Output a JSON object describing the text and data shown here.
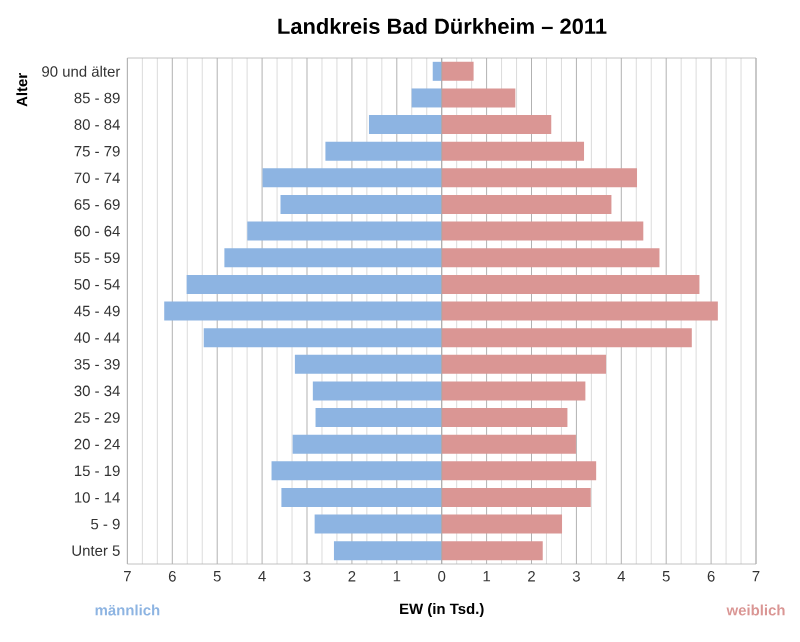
{
  "chart_data": {
    "type": "bar",
    "orientation": "horizontal",
    "title": "Landkreis Bad Dürkheim – 2011",
    "xlabel": "EW (in Tsd.)",
    "ylabel": "Alter",
    "categories": [
      "90 und älter",
      "85 - 89",
      "80 - 84",
      "75 - 79",
      "70 - 74",
      "65 - 69",
      "60 - 64",
      "55 - 59",
      "50 - 54",
      "45 - 49",
      "40 - 44",
      "35 - 39",
      "30 - 34",
      "25 - 29",
      "20 - 24",
      "15 - 19",
      "10 - 14",
      "5 - 9",
      "Unter 5"
    ],
    "series": [
      {
        "name": "männlich",
        "color": "#8db4e2",
        "values": [
          -0.2,
          -0.67,
          -1.62,
          -2.59,
          -3.99,
          -3.59,
          -4.33,
          -4.84,
          -5.68,
          -6.18,
          -5.3,
          -3.27,
          -2.87,
          -2.81,
          -3.32,
          -3.79,
          -3.57,
          -2.83,
          -2.4
        ]
      },
      {
        "name": "weiblich",
        "color": "#da9694",
        "values": [
          0.71,
          1.64,
          2.44,
          3.17,
          4.35,
          3.78,
          4.49,
          4.85,
          5.74,
          6.15,
          5.57,
          3.66,
          3.2,
          2.8,
          2.99,
          3.44,
          3.32,
          2.68,
          2.25
        ]
      }
    ],
    "xlim": [
      -7,
      7
    ],
    "xticks": [
      {
        "value": -7,
        "label": "7"
      },
      {
        "value": -6,
        "label": "6"
      },
      {
        "value": -5,
        "label": "5"
      },
      {
        "value": -4,
        "label": "4"
      },
      {
        "value": -3,
        "label": "3"
      },
      {
        "value": -2,
        "label": "2"
      },
      {
        "value": -1,
        "label": "1"
      },
      0,
      1,
      2,
      3,
      4,
      5,
      6,
      7
    ],
    "grid": "x",
    "stacked": true
  }
}
